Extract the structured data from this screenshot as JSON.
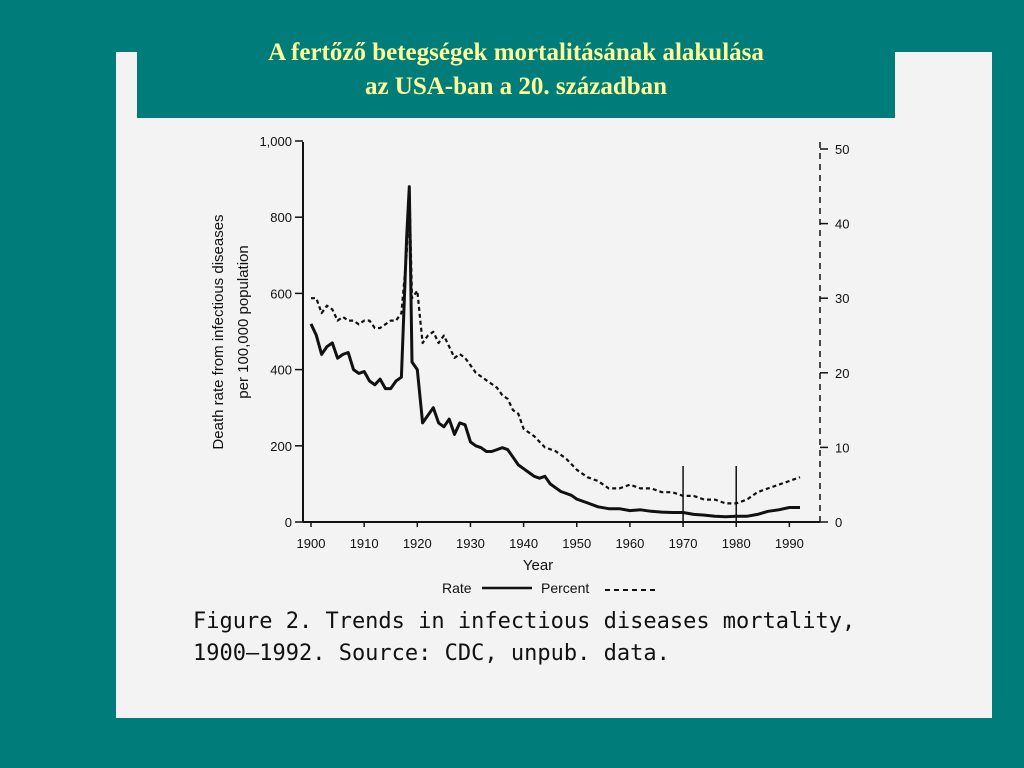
{
  "slide": {
    "title_line1": "A fertőző betegségek mortalitásának alakulása",
    "title_line2": "az USA-ban a 20. században",
    "colors": {
      "background": "#007d7b",
      "title_text": "#ffff99",
      "scan_paper": "#f3f3f3"
    }
  },
  "figure": {
    "caption_line1": "Figure 2. Trends in infectious diseases mortality,",
    "caption_line2": "1900–1992. Source: CDC, unpub. data."
  },
  "chart_data": {
    "type": "line",
    "xlabel": "Year",
    "ylabel_line1": "Death rate from infectious diseases",
    "ylabel_line2": "per 100,000 population",
    "xlim": [
      1900,
      1992
    ],
    "ylim": [
      0,
      1000
    ],
    "y2lim": [
      0,
      50
    ],
    "x_ticks": [
      "1900",
      "1910",
      "1920",
      "1930",
      "1940",
      "1950",
      "1960",
      "1970",
      "1980",
      "1990"
    ],
    "y_ticks": [
      "0",
      "200",
      "400",
      "600",
      "800",
      "1,000"
    ],
    "y2_ticks": [
      "0",
      "10",
      "20",
      "30",
      "40",
      "50"
    ],
    "vertical_markers": [
      1970,
      1980
    ],
    "legend": {
      "rate_label": "Rate",
      "percent_label": "Percent"
    },
    "series": [
      {
        "name": "Rate",
        "axis": "left",
        "style": "solid",
        "x": [
          1900,
          1901,
          1902,
          1903,
          1904,
          1905,
          1906,
          1907,
          1908,
          1909,
          1910,
          1911,
          1912,
          1913,
          1914,
          1915,
          1916,
          1917,
          1918,
          1918.5,
          1919,
          1920,
          1921,
          1922,
          1923,
          1924,
          1925,
          1926,
          1927,
          1928,
          1929,
          1930,
          1931,
          1932,
          1933,
          1934,
          1935,
          1936,
          1937,
          1938,
          1939,
          1940,
          1941,
          1942,
          1943,
          1944,
          1945,
          1946,
          1947,
          1948,
          1949,
          1950,
          1952,
          1954,
          1956,
          1958,
          1960,
          1962,
          1964,
          1966,
          1968,
          1970,
          1972,
          1974,
          1976,
          1978,
          1980,
          1982,
          1984,
          1986,
          1988,
          1990,
          1992
        ],
        "y": [
          520,
          490,
          440,
          460,
          470,
          430,
          440,
          445,
          400,
          390,
          395,
          370,
          360,
          375,
          350,
          350,
          370,
          380,
          750,
          880,
          420,
          400,
          260,
          280,
          300,
          260,
          250,
          270,
          230,
          260,
          255,
          210,
          200,
          195,
          185,
          185,
          190,
          195,
          190,
          170,
          150,
          140,
          130,
          120,
          115,
          120,
          100,
          90,
          80,
          75,
          70,
          60,
          50,
          40,
          35,
          35,
          30,
          32,
          28,
          26,
          25,
          25,
          20,
          18,
          15,
          14,
          15,
          15,
          20,
          28,
          32,
          38,
          38
        ]
      },
      {
        "name": "Percent",
        "axis": "right",
        "style": "dashed",
        "x": [
          1900,
          1901,
          1902,
          1903,
          1904,
          1905,
          1906,
          1907,
          1908,
          1909,
          1910,
          1911,
          1912,
          1913,
          1914,
          1915,
          1916,
          1917,
          1918,
          1918.5,
          1919,
          1920,
          1921,
          1922,
          1923,
          1924,
          1925,
          1926,
          1927,
          1928,
          1929,
          1930,
          1931,
          1932,
          1933,
          1934,
          1935,
          1936,
          1937,
          1938,
          1939,
          1940,
          1942,
          1944,
          1946,
          1948,
          1950,
          1952,
          1954,
          1956,
          1958,
          1960,
          1962,
          1964,
          1966,
          1968,
          1970,
          1972,
          1974,
          1976,
          1978,
          1980,
          1982,
          1984,
          1986,
          1988,
          1990,
          1992
        ],
        "y": [
          30,
          30,
          28,
          29,
          28.5,
          27,
          27.5,
          27,
          27,
          26.5,
          27,
          27,
          26,
          26,
          26.5,
          27,
          27,
          28,
          36,
          45,
          30,
          31,
          24,
          25,
          25.5,
          24,
          25,
          23.5,
          22,
          22.5,
          22,
          21,
          20,
          19.5,
          19,
          18.5,
          18,
          17,
          16.5,
          15,
          14.5,
          12.5,
          11.5,
          10,
          9.5,
          8.5,
          7,
          6,
          5.5,
          4.5,
          4.5,
          5,
          4.5,
          4.5,
          4,
          4,
          3.5,
          3.5,
          3,
          3,
          2.5,
          2.5,
          3,
          4,
          4.5,
          5,
          5.5,
          6
        ]
      }
    ]
  }
}
